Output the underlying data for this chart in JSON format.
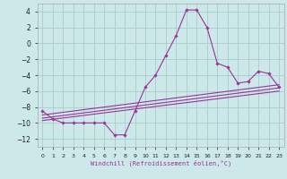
{
  "xlabel": "Windchill (Refroidissement éolien,°C)",
  "background_color": "#cce8e8",
  "grid_color": "#aacccc",
  "line_color": "#993399",
  "x_values": [
    0,
    1,
    2,
    3,
    4,
    5,
    6,
    7,
    8,
    9,
    10,
    11,
    12,
    13,
    14,
    15,
    16,
    17,
    18,
    19,
    20,
    21,
    22,
    23
  ],
  "ylim": [
    -13,
    5
  ],
  "yticks": [
    -12,
    -10,
    -8,
    -6,
    -4,
    -2,
    0,
    2,
    4
  ],
  "xlim": [
    -0.5,
    23.5
  ],
  "series1": [
    -8.5,
    -9.5,
    -10.0,
    -10.0,
    -10.0,
    -10.0,
    -10.0,
    -11.5,
    -11.5,
    -8.5,
    -5.5,
    -4.0,
    -1.5,
    1.0,
    4.2,
    4.2,
    2.0,
    -2.5,
    -3.0,
    -5.0,
    -4.8,
    -3.5,
    -3.8,
    -5.5
  ],
  "line2_y": [
    -9.0,
    -5.2
  ],
  "line3_y": [
    -9.4,
    -5.6
  ],
  "line4_y": [
    -9.7,
    -6.0
  ]
}
